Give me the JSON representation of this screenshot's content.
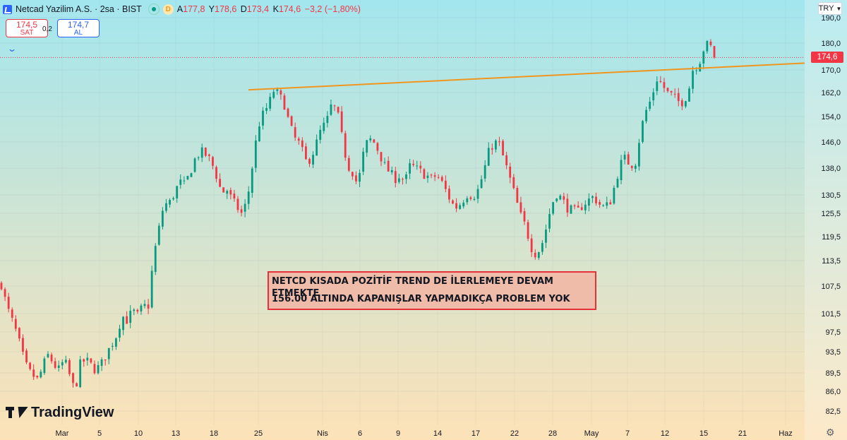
{
  "header": {
    "symbol_title": "Netcad Yazilim A.S. · 2sa · BIST",
    "session_badge": "D",
    "ohlc": [
      {
        "key": "A",
        "value": "177,8"
      },
      {
        "key": "Y",
        "value": "178,6"
      },
      {
        "key": "D",
        "value": "173,4"
      },
      {
        "key": "K",
        "value": "174,6"
      }
    ],
    "change": "−3,2 (−1,80%)"
  },
  "quote": {
    "sell_price": "174,5",
    "sell_label": "SAT",
    "spread": "0,2",
    "buy_price": "174,7",
    "buy_label": "AL"
  },
  "currency": "TRY",
  "annotation": {
    "line1": "NETCD KISADA POZİTİF TREND DE İLERLEMEYE DEVAM ETMEKTE",
    "line2": "156.00 ALTINDA KAPANIŞLAR YAPMADIKÇA PROBLEM YOK"
  },
  "logo_text": "TradingView",
  "colors": {
    "up": "#089981",
    "down": "#f23645",
    "trendline": "#f0961e",
    "bg_top": "#a3e6ee",
    "bg_bottom": "#fde2b7"
  },
  "chart_data": {
    "type": "candlestick",
    "symbol": "NETCD",
    "interval": "2sa",
    "currency": "TRY",
    "scale": "log",
    "y_ticks": [
      82.5,
      86.0,
      89.5,
      93.5,
      97.5,
      101.5,
      107.5,
      113.5,
      119.5,
      125.5,
      130.5,
      138.0,
      146.0,
      154.0,
      162.0,
      170.0,
      180.0,
      190.0
    ],
    "y_tick_labels": [
      "82,5",
      "86,0",
      "89,5",
      "93,5",
      "97,5",
      "101,5",
      "107,5",
      "113,5",
      "119,5",
      "125,5",
      "130,5",
      "138,0",
      "146,0",
      "154,0",
      "162,0",
      "170,0",
      "180,0",
      "190,0"
    ],
    "x_tick_labels": [
      "Mar",
      "5",
      "10",
      "13",
      "18",
      "25",
      "Nis",
      "6",
      "9",
      "14",
      "17",
      "22",
      "28",
      "May",
      "7",
      "12",
      "15",
      "21",
      "Haz"
    ],
    "last_price": 174.6,
    "last_price_label": "174,6",
    "trendline": {
      "from": {
        "date": "Mar 22",
        "value": 163.0
      },
      "to": {
        "date": "beyond Haz",
        "value": 172.5
      }
    },
    "price_path": [
      [
        0,
        108
      ],
      [
        1,
        103
      ],
      [
        2,
        100
      ],
      [
        3,
        97
      ],
      [
        4,
        93
      ],
      [
        5,
        90
      ],
      [
        6,
        89
      ],
      [
        7,
        88
      ],
      [
        8,
        91
      ],
      [
        9,
        93
      ],
      [
        10,
        91
      ],
      [
        11,
        90
      ],
      [
        12,
        92
      ],
      [
        13,
        89
      ],
      [
        14,
        86
      ],
      [
        15,
        91
      ],
      [
        16,
        92
      ],
      [
        17,
        91
      ],
      [
        18,
        90
      ],
      [
        19,
        91
      ],
      [
        20,
        93
      ],
      [
        21,
        95
      ],
      [
        22,
        97
      ],
      [
        23,
        101
      ],
      [
        24,
        100
      ],
      [
        25,
        102
      ],
      [
        26,
        101
      ],
      [
        27,
        103
      ],
      [
        28,
        103
      ],
      [
        29,
        114
      ],
      [
        30,
        121
      ],
      [
        31,
        128
      ],
      [
        32,
        128
      ],
      [
        33,
        131
      ],
      [
        34,
        134
      ],
      [
        35,
        133
      ],
      [
        36,
        137
      ],
      [
        37,
        141
      ],
      [
        38,
        143
      ],
      [
        39,
        142
      ],
      [
        40,
        140
      ],
      [
        41,
        136
      ],
      [
        42,
        131
      ],
      [
        43,
        132
      ],
      [
        44,
        129
      ],
      [
        45,
        127
      ],
      [
        46,
        125
      ],
      [
        47,
        130
      ],
      [
        48,
        140
      ],
      [
        49,
        151
      ],
      [
        50,
        155
      ],
      [
        51,
        158
      ],
      [
        52,
        163
      ],
      [
        53,
        161
      ],
      [
        54,
        158
      ],
      [
        55,
        151
      ],
      [
        56,
        147
      ],
      [
        57,
        145
      ],
      [
        58,
        140
      ],
      [
        59,
        141
      ],
      [
        60,
        145
      ],
      [
        61,
        150
      ],
      [
        62,
        152
      ],
      [
        63,
        158
      ],
      [
        64,
        156
      ],
      [
        65,
        147
      ],
      [
        66,
        139
      ],
      [
        67,
        137
      ],
      [
        68,
        133
      ],
      [
        69,
        142
      ],
      [
        70,
        147
      ],
      [
        71,
        146
      ],
      [
        72,
        143
      ],
      [
        73,
        139
      ],
      [
        74,
        137
      ],
      [
        75,
        135
      ],
      [
        76,
        136
      ],
      [
        77,
        134
      ],
      [
        78,
        139
      ],
      [
        79,
        138
      ],
      [
        80,
        137
      ],
      [
        81,
        136
      ],
      [
        82,
        135
      ],
      [
        83,
        136
      ],
      [
        84,
        134
      ],
      [
        85,
        131
      ],
      [
        86,
        128
      ],
      [
        87,
        127
      ],
      [
        88,
        129
      ],
      [
        89,
        131
      ],
      [
        90,
        130
      ],
      [
        91,
        132
      ],
      [
        92,
        137
      ],
      [
        93,
        143
      ],
      [
        94,
        146
      ],
      [
        95,
        145
      ],
      [
        96,
        140
      ],
      [
        97,
        135
      ],
      [
        98,
        130
      ],
      [
        99,
        125
      ],
      [
        100,
        122
      ],
      [
        101,
        117
      ],
      [
        102,
        115
      ],
      [
        103,
        117
      ],
      [
        104,
        122
      ],
      [
        105,
        128
      ],
      [
        106,
        131
      ],
      [
        107,
        129
      ],
      [
        108,
        127
      ],
      [
        109,
        126
      ],
      [
        110,
        126
      ],
      [
        111,
        128
      ],
      [
        112,
        129
      ],
      [
        113,
        130
      ],
      [
        114,
        128
      ],
      [
        115,
        127
      ],
      [
        116,
        128
      ],
      [
        117,
        133
      ],
      [
        118,
        139
      ],
      [
        119,
        141
      ],
      [
        120,
        139
      ],
      [
        121,
        140
      ],
      [
        122,
        150
      ],
      [
        123,
        156
      ],
      [
        124,
        160
      ],
      [
        125,
        167
      ],
      [
        126,
        165
      ],
      [
        127,
        162
      ],
      [
        128,
        161
      ],
      [
        129,
        159
      ],
      [
        130,
        159
      ],
      [
        131,
        162
      ],
      [
        132,
        171
      ],
      [
        133,
        172
      ],
      [
        134,
        178
      ],
      [
        135,
        180
      ],
      [
        136,
        175
      ]
    ]
  }
}
